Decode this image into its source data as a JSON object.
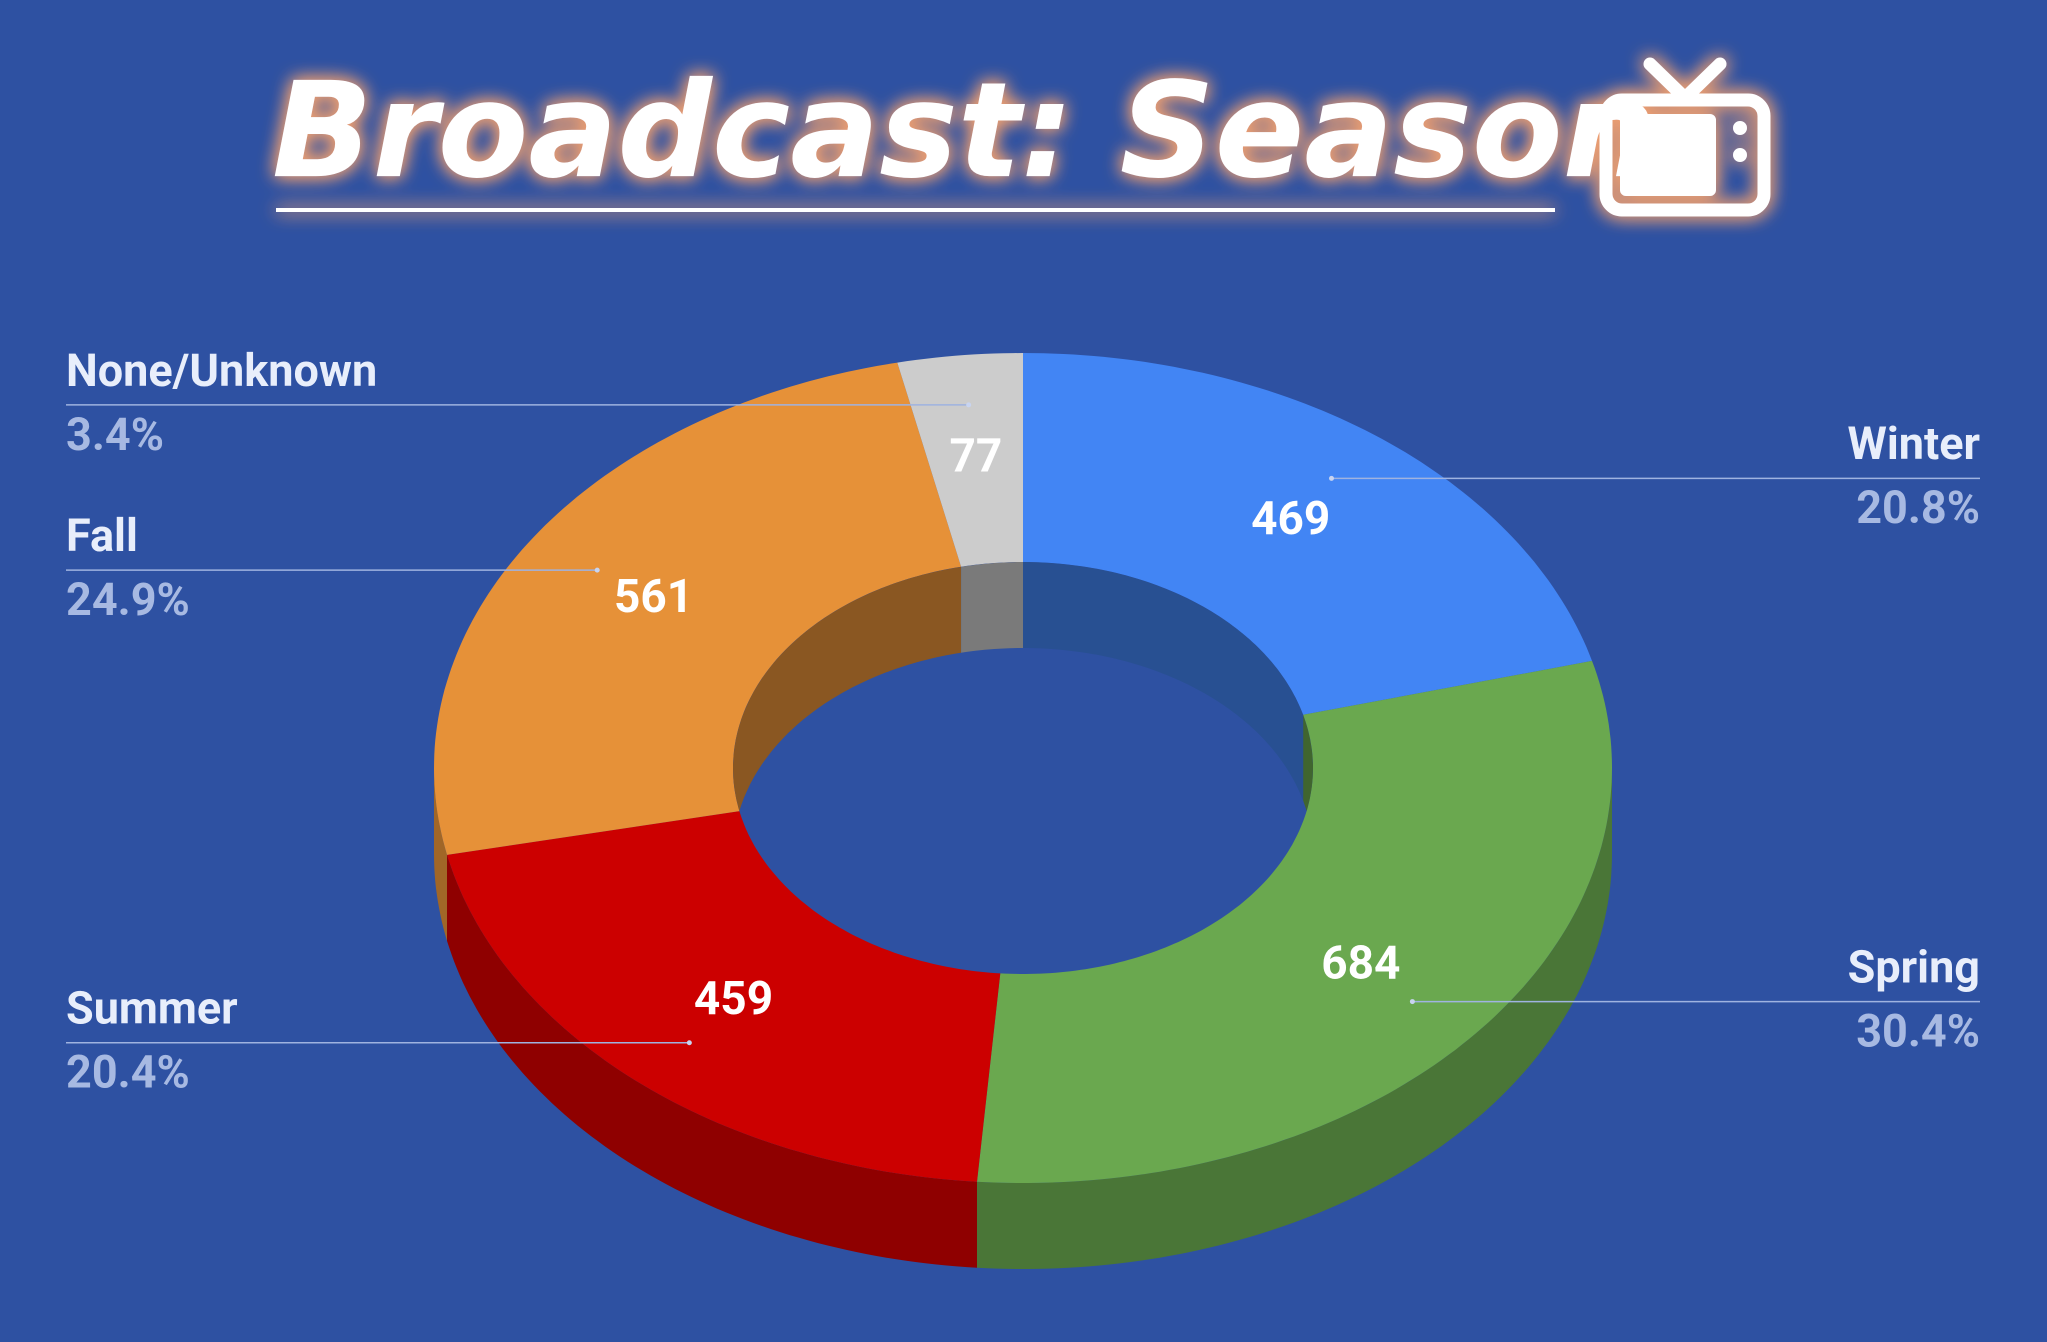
{
  "chart_data": {
    "type": "donut3d",
    "title": "Broadcast: Season",
    "categories": [
      "Winter",
      "Spring",
      "Summer",
      "Fall",
      "None/Unknown"
    ],
    "values": [
      469,
      684,
      459,
      561,
      77
    ],
    "percent_labels": [
      "20.8%",
      "30.4%",
      "20.4%",
      "24.9%",
      "3.4%"
    ],
    "colors": [
      "#4285f4",
      "#6aa84f",
      "#cc0000",
      "#e69138",
      "#cccccc"
    ]
  }
}
